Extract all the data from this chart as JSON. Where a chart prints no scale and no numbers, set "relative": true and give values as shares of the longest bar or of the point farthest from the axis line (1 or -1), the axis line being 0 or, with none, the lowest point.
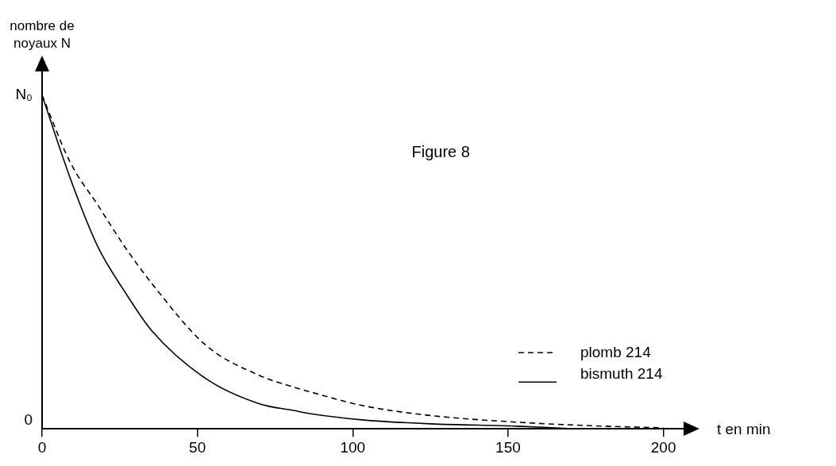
{
  "chart_data": {
    "type": "line",
    "title": "Figure 8",
    "xlabel": "t en min",
    "ylabel": "nombre de noyaux N",
    "xlim": [
      0,
      207
    ],
    "xticks": [
      0,
      50,
      100,
      150,
      200
    ],
    "relative": true,
    "annotations": [
      {
        "text": "N₀",
        "x": 0,
        "y": 1
      },
      "0"
    ],
    "grid": false,
    "legend": "bottom right",
    "marker": "none",
    "series": [
      {
        "name": "plomb 214",
        "color": "#000000",
        "line_style": "dashed",
        "x": [
          0,
          9,
          18,
          26.7,
          35.4,
          52.8,
          70,
          81,
          86.6,
          103,
          125,
          153,
          175,
          200
        ],
        "values": [
          1,
          0.8,
          0.67,
          0.545,
          0.435,
          0.25,
          0.16,
          0.125,
          0.11,
          0.07,
          0.04,
          0.02,
          0.01,
          0.003
        ]
      },
      {
        "name": "bismuth 214",
        "color": "#000000",
        "line_style": "solid",
        "x": [
          0,
          9.3,
          18,
          26.7,
          35.4,
          52.8,
          70,
          81,
          86.6,
          103,
          125,
          153,
          172
        ],
        "values": [
          1,
          0.745,
          0.545,
          0.41,
          0.293,
          0.15,
          0.075,
          0.055,
          0.045,
          0.027,
          0.015,
          0.008,
          0
        ]
      }
    ]
  }
}
